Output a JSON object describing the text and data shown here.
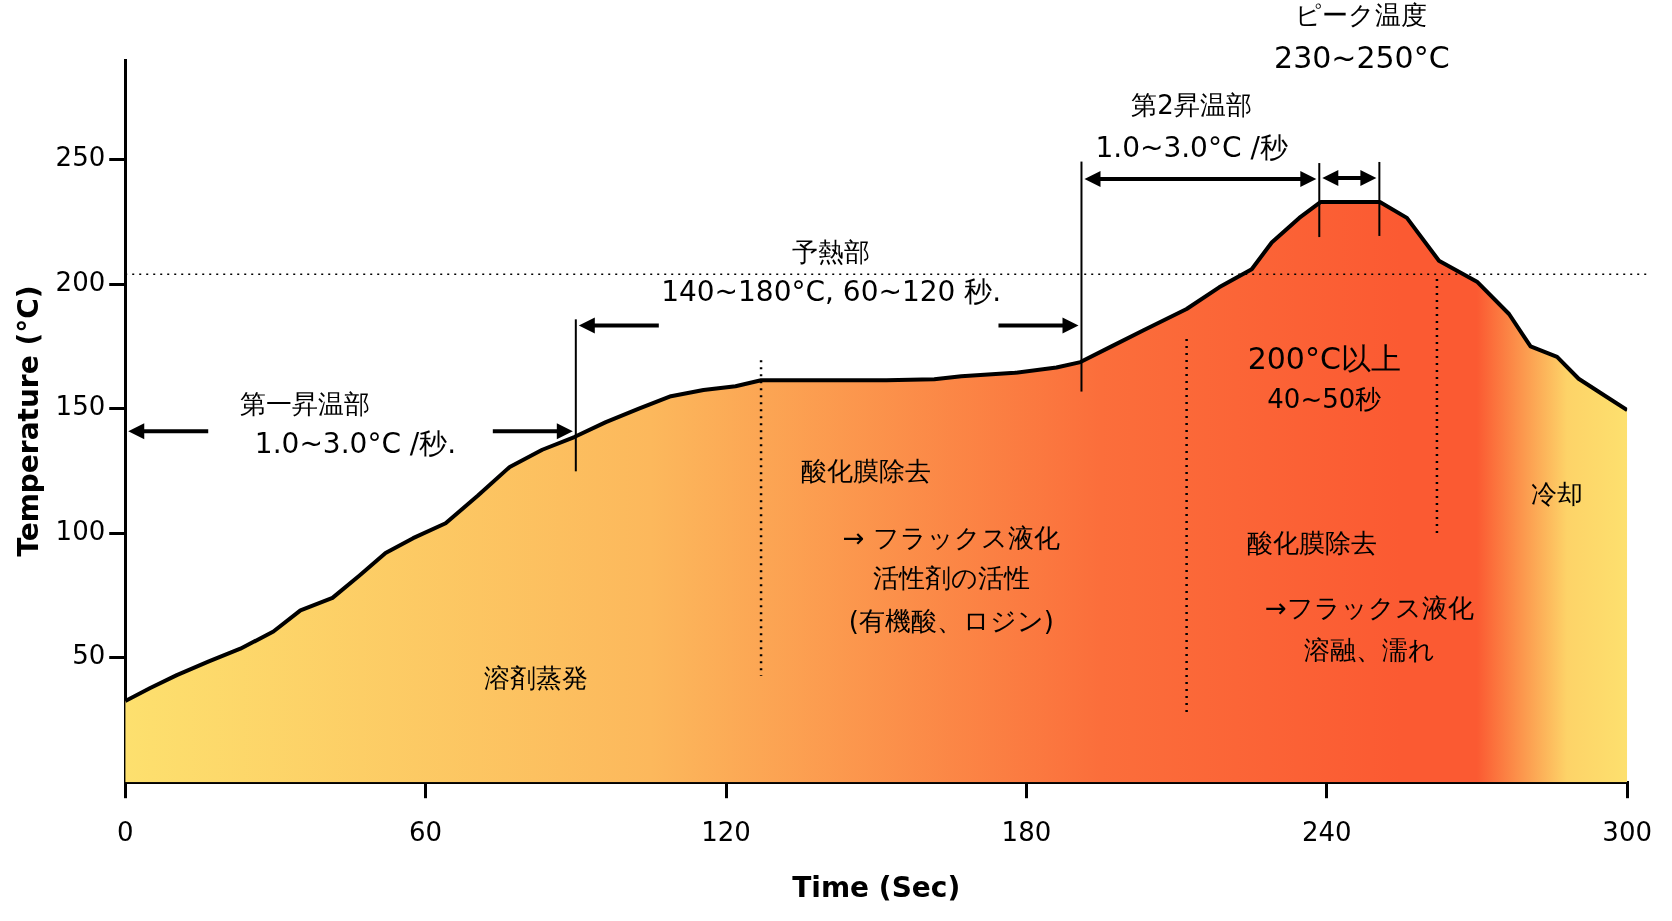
{
  "chart_data": {
    "type": "area",
    "xlabel": "Time (Sec)",
    "ylabel": "Temperature (°C)",
    "x": [
      0,
      5,
      10.3,
      16.7,
      23,
      29.6,
      35,
      41.4,
      46.8,
      52,
      57.5,
      64,
      70.4,
      76.8,
      83.3,
      89.7,
      96,
      102.6,
      109,
      115.5,
      121.9,
      127,
      139,
      152,
      161.6,
      167,
      177.7,
      186,
      190.8,
      197,
      203.4,
      212,
      218.5,
      225,
      229,
      234.5,
      238.8,
      250.6,
      256,
      262.4,
      270,
      276.4,
      280.7,
      286,
      290.3,
      295.7,
      300
    ],
    "series": [
      {
        "color": "#fb5a32",
        "values": [
          32.6,
          37.8,
          43,
          48.5,
          53.6,
          60.5,
          69,
          74,
          83,
          92,
          98,
          104,
          115,
          126.6,
          133.5,
          138.6,
          144.6,
          150,
          155,
          157.5,
          159,
          161.4,
          161.4,
          161.4,
          161.8,
          163,
          164.4,
          166.5,
          168.7,
          175,
          181.5,
          190,
          198.7,
          206,
          216.7,
          226.6,
          233,
          233,
          226.6,
          209.4,
          201,
          188,
          175,
          170.8,
          162,
          155,
          149.4
        ]
      }
    ],
    "xlim": [
      0,
      300
    ],
    "xticks": [
      0,
      60,
      120,
      180,
      240,
      300
    ],
    "ylim": [
      0,
      290
    ],
    "yticks": [
      50,
      100,
      150,
      200,
      250
    ],
    "grid": false,
    "legend": false,
    "ref_lines": [
      {
        "axis": "x",
        "value": 90,
        "line_style": "solid",
        "color": "#000000"
      },
      {
        "axis": "x",
        "value": 191,
        "line_style": "solid",
        "color": "#000000"
      },
      {
        "axis": "x",
        "value": 238.5,
        "line_style": "solid",
        "color": "#000000"
      },
      {
        "axis": "x",
        "value": 250.5,
        "line_style": "solid",
        "color": "#000000"
      },
      {
        "axis": "x",
        "value": 127,
        "line_style": "dotted",
        "color": "#000000"
      },
      {
        "axis": "x",
        "value": 212,
        "line_style": "dotted",
        "color": "#000000"
      },
      {
        "axis": "x",
        "value": 262,
        "line_style": "dotted",
        "color": "#000000"
      },
      {
        "axis": "y",
        "value": 204,
        "line_style": "dotted",
        "color": "#000000"
      }
    ],
    "annotations": [
      "ピーク温度",
      "230~250°C",
      "第2昇温部",
      "1.0~3.0°C /秒",
      "予熱部",
      "140~180°C, 60~120 秒.",
      "第一昇温部",
      "1.0~3.0°C /秒.",
      "200°C以上",
      "40~50秒",
      "酸化膜除去",
      "→ フラックス液化",
      "活性剤の活性",
      "(有機酸、ロジン)",
      "溶剤蒸発",
      "酸化膜除去",
      "→フラックス液化",
      "溶融、濡れ",
      "冷却"
    ]
  }
}
